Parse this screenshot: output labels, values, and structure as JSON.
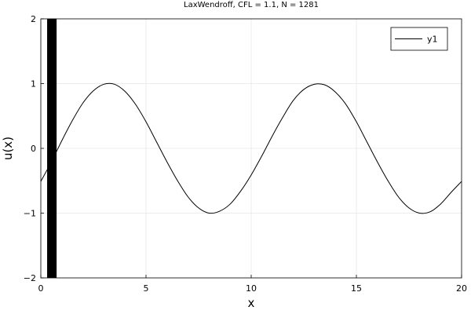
{
  "chart_data": {
    "type": "line",
    "title": "LaxWendroff, CFL = 1.1, N = 1281",
    "xlabel": "x",
    "ylabel": "u(x)",
    "xlim": [
      0,
      20
    ],
    "ylim": [
      -2,
      2
    ],
    "xticks": [
      0,
      5,
      10,
      15,
      20
    ],
    "yticks": [
      -2,
      -1,
      0,
      1,
      2
    ],
    "xtick_labels": [
      "0",
      "5",
      "10",
      "15",
      "20"
    ],
    "ytick_labels": [
      "−2",
      "−1",
      "0",
      "1",
      "2"
    ],
    "grid": true,
    "legend": {
      "position": "top-right",
      "entries": [
        "y1"
      ]
    },
    "series": [
      {
        "name": "y1",
        "color": "#000000",
        "x": [
          0.0,
          0.5,
          1.0,
          1.5,
          2.0,
          2.5,
          3.0,
          3.5,
          4.0,
          4.5,
          5.0,
          5.5,
          6.0,
          6.5,
          7.0,
          7.5,
          8.0,
          8.5,
          9.0,
          9.5,
          10.0,
          10.5,
          11.0,
          11.5,
          12.0,
          12.5,
          13.0,
          13.5,
          14.0,
          14.5,
          15.0,
          15.5,
          16.0,
          16.5,
          17.0,
          17.5,
          18.0,
          18.5,
          19.0,
          19.5,
          20.0
        ],
        "y": [
          -0.51,
          -0.21,
          0.12,
          0.43,
          0.7,
          0.89,
          0.99,
          0.99,
          0.88,
          0.68,
          0.41,
          0.1,
          -0.21,
          -0.5,
          -0.75,
          -0.92,
          -1.0,
          -0.97,
          -0.86,
          -0.66,
          -0.41,
          -0.12,
          0.19,
          0.48,
          0.74,
          0.91,
          0.99,
          0.98,
          0.87,
          0.68,
          0.41,
          0.1,
          -0.21,
          -0.5,
          -0.75,
          -0.92,
          -1.0,
          -0.98,
          -0.86,
          -0.68,
          -0.51
        ]
      }
    ],
    "oscillation_band": {
      "x_range": [
        0.3,
        0.75
      ],
      "y_range": [
        -2,
        2
      ],
      "color": "#000000"
    }
  }
}
